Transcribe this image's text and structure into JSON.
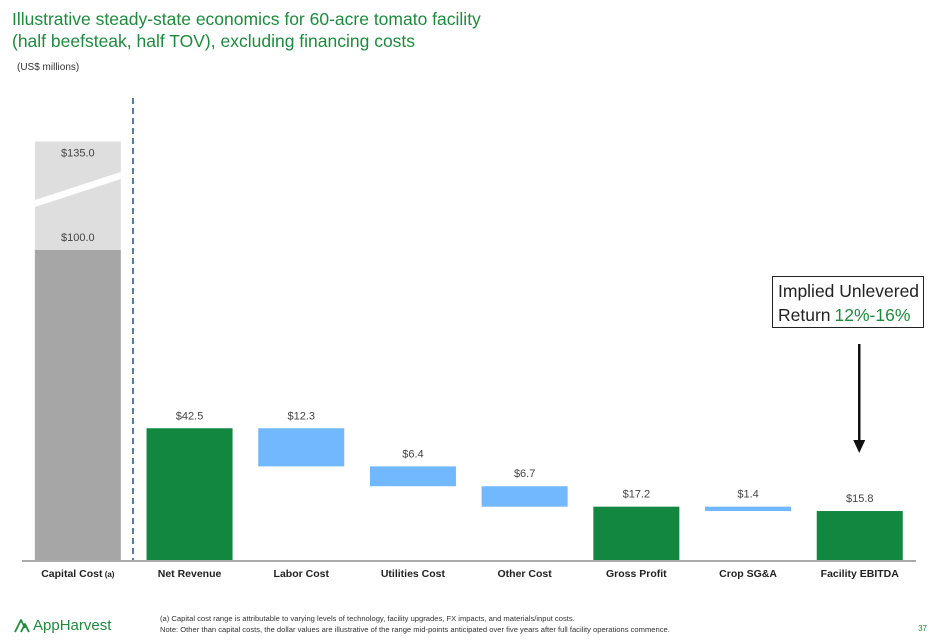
{
  "header": {
    "title_line1": "Illustrative steady-state economics for 60-acre tomato facility",
    "title_line2": "(half beefsteak, half TOV), excluding financing costs",
    "units": "(US$ millions)"
  },
  "callout": {
    "line1": "Implied Unlevered",
    "line2_prefix": "Return",
    "line2_value": "12%-16%"
  },
  "footer": {
    "brand": "AppHarvest",
    "footnote_a": "(a) Capital cost range is attributable to varying levels of technology, facility upgrades, FX impacts, and materials/input costs.",
    "footnote_note": "Note: Other than capital costs, the dollar values are illustrative of the range mid-points anticipated over five years after full facility operations commence.",
    "page": "37"
  },
  "colors": {
    "title": "#1f8a3e",
    "green_bar": "#12873f",
    "blue_bar": "#71b8ff",
    "capital_low": "#a6a6a6",
    "capital_high": "#dedede"
  },
  "chart_data": {
    "type": "waterfall",
    "ylim": [
      0,
      150
    ],
    "categories": [
      "Capital Cost",
      "Net Revenue",
      "Labor Cost",
      "Utilities Cost",
      "Other Cost",
      "Gross Profit",
      "Crop SG&A",
      "Facility EBITDA"
    ],
    "category_suffixes": [
      "(a)",
      "",
      "",
      "",
      "",
      "",
      "",
      ""
    ],
    "bars": [
      {
        "category": "Capital Cost",
        "kind": "range",
        "low": 100.0,
        "high": 135.0,
        "label_low": "$100.0",
        "label_high": "$135.0"
      },
      {
        "category": "Net Revenue",
        "kind": "total",
        "start": 0,
        "end": 42.5,
        "label": "$42.5"
      },
      {
        "category": "Labor Cost",
        "kind": "decrease",
        "start": 42.5,
        "end": 30.2,
        "label": "$12.3"
      },
      {
        "category": "Utilities Cost",
        "kind": "decrease",
        "start": 30.2,
        "end": 23.8,
        "label": "$6.4"
      },
      {
        "category": "Other Cost",
        "kind": "decrease",
        "start": 23.8,
        "end": 17.2,
        "label": "$6.7"
      },
      {
        "category": "Gross Profit",
        "kind": "total",
        "start": 0,
        "end": 17.2,
        "label": "$17.2"
      },
      {
        "category": "Crop SG&A",
        "kind": "decrease",
        "start": 17.2,
        "end": 15.8,
        "label": "$1.4"
      },
      {
        "category": "Facility EBITDA",
        "kind": "total",
        "start": 0,
        "end": 15.8,
        "label": "$15.8"
      }
    ]
  }
}
